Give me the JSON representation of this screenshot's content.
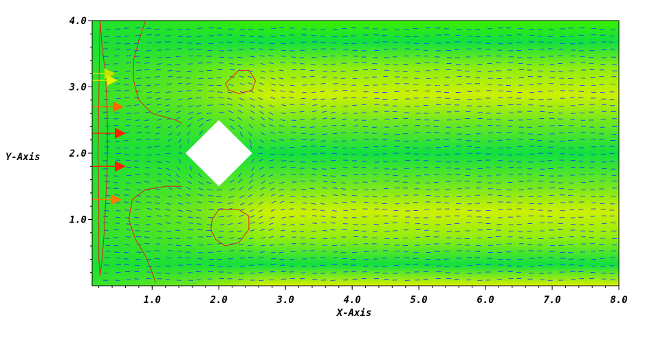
{
  "chart_data": {
    "type": "vector-field",
    "title": "",
    "xlabel": "X-Axis",
    "ylabel": "Y-Axis",
    "xlim": [
      0.1,
      8.0
    ],
    "ylim": [
      0.0,
      4.0
    ],
    "x_ticks": [
      {
        "value": 1.0,
        "label": "1.0"
      },
      {
        "value": 2.0,
        "label": "2.0"
      },
      {
        "value": 3.0,
        "label": "3.0"
      },
      {
        "value": 4.0,
        "label": "4.0"
      },
      {
        "value": 5.0,
        "label": "5.0"
      },
      {
        "value": 6.0,
        "label": "6.0"
      },
      {
        "value": 7.0,
        "label": "7.0"
      },
      {
        "value": 8.0,
        "label": "8.0"
      }
    ],
    "y_ticks": [
      {
        "value": 1.0,
        "label": "1.0"
      },
      {
        "value": 2.0,
        "label": "2.0"
      },
      {
        "value": 3.0,
        "label": "3.0"
      },
      {
        "value": 4.0,
        "label": "4.0"
      }
    ],
    "obstacle": {
      "shape": "diamond",
      "center": [
        2.0,
        2.0
      ],
      "half_diagonal": 0.5
    },
    "inlet_vectors": [
      {
        "x": 0.1,
        "y": 3.2,
        "magnitude": 0.3,
        "color": "#c8e000"
      },
      {
        "x": 0.1,
        "y": 3.1,
        "magnitude": 0.35,
        "color": "#e8f000"
      },
      {
        "x": 0.1,
        "y": 2.7,
        "magnitude": 0.5,
        "color": "#ff6a00"
      },
      {
        "x": 0.1,
        "y": 2.3,
        "magnitude": 0.55,
        "color": "#ff2000"
      },
      {
        "x": 0.1,
        "y": 1.8,
        "magnitude": 0.55,
        "color": "#ff2000"
      },
      {
        "x": 0.1,
        "y": 1.3,
        "magnitude": 0.45,
        "color": "#ff7a00"
      }
    ],
    "contours": [
      {
        "name": "inlet-contour",
        "points": [
          [
            0.22,
            4.0
          ],
          [
            0.25,
            3.6
          ],
          [
            0.3,
            3.2
          ],
          [
            0.32,
            2.8
          ],
          [
            0.33,
            2.4
          ],
          [
            0.33,
            2.0
          ],
          [
            0.32,
            1.6
          ],
          [
            0.3,
            1.2
          ],
          [
            0.28,
            0.8
          ],
          [
            0.25,
            0.4
          ],
          [
            0.22,
            0.15
          ],
          [
            0.2,
            0.4
          ],
          [
            0.2,
            1.2
          ],
          [
            0.19,
            2.0
          ],
          [
            0.2,
            2.8
          ],
          [
            0.21,
            3.6
          ],
          [
            0.22,
            4.0
          ]
        ]
      },
      {
        "name": "upper-left-contour",
        "points": [
          [
            0.9,
            4.0
          ],
          [
            0.8,
            3.7
          ],
          [
            0.72,
            3.4
          ],
          [
            0.72,
            3.1
          ],
          [
            0.8,
            2.8
          ],
          [
            1.0,
            2.6
          ],
          [
            1.35,
            2.5
          ],
          [
            1.45,
            2.45
          ]
        ]
      },
      {
        "name": "lower-left-contour",
        "points": [
          [
            1.45,
            1.5
          ],
          [
            1.2,
            1.5
          ],
          [
            0.9,
            1.45
          ],
          [
            0.7,
            1.3
          ],
          [
            0.65,
            1.0
          ],
          [
            0.75,
            0.7
          ],
          [
            0.9,
            0.45
          ],
          [
            1.0,
            0.2
          ],
          [
            1.05,
            0.05
          ]
        ]
      },
      {
        "name": "upper-eddy",
        "points": [
          [
            2.1,
            3.05
          ],
          [
            2.3,
            3.25
          ],
          [
            2.45,
            3.25
          ],
          [
            2.55,
            3.1
          ],
          [
            2.5,
            2.95
          ],
          [
            2.3,
            2.9
          ],
          [
            2.15,
            2.95
          ],
          [
            2.1,
            3.05
          ]
        ]
      },
      {
        "name": "lower-eddy",
        "points": [
          [
            1.9,
            1.0
          ],
          [
            2.0,
            1.15
          ],
          [
            2.3,
            1.15
          ],
          [
            2.45,
            1.05
          ],
          [
            2.45,
            0.85
          ],
          [
            2.3,
            0.65
          ],
          [
            2.1,
            0.6
          ],
          [
            1.95,
            0.7
          ],
          [
            1.88,
            0.85
          ],
          [
            1.9,
            1.0
          ]
        ]
      }
    ],
    "colors": {
      "background_green": "#22e822",
      "band_yellow": "#c8f000",
      "vector_blue": "#1a3cff",
      "contour_red": "#d82020"
    },
    "grid": false,
    "legend": "none"
  }
}
